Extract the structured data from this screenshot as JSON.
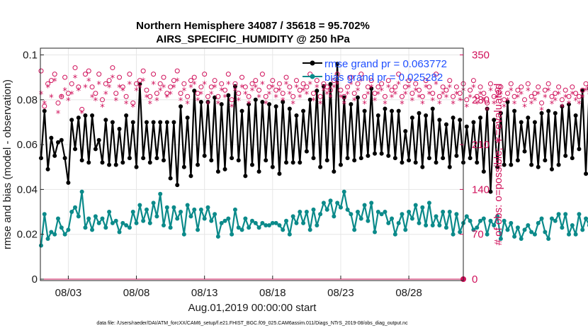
{
  "chart_data": {
    "type": "line",
    "title_line1": "Northern Hemisphere 34087 / 35618 = 95.702%",
    "title_line2": "AIRS_SPECIFIC_HUMIDITY @ 250 hPa",
    "xlabel": "Aug.01,2019 00:00:00 start",
    "ylabel": "rmse and bias (model - observation)",
    "ylabel_right": "# of obs: o=possible; ∗=evaluated",
    "ylim": [
      0,
      0.103
    ],
    "ylim_right": [
      0,
      360.5
    ],
    "yticks": [
      "0",
      "0.02",
      "0.04",
      "0.06",
      "0.08",
      "0.1"
    ],
    "yticks_right": [
      "0",
      "70",
      "140",
      "210",
      "280",
      "350"
    ],
    "xticks": [
      "08/03",
      "08/08",
      "08/13",
      "08/18",
      "08/23",
      "08/28"
    ],
    "footer": "data file: /Users/raeder/DAI/ATM_forcXX/CAM6_setup/f.e21.FHIST_BGC.f09_025.CAM6assim.011/Diags_NTrS_2019-08/obs_diag_output.nc",
    "x_start_day": 1.0,
    "x_step_days": 0.25,
    "series": [
      {
        "name": "rmse grand pr = 0.063772",
        "color": "#000000",
        "values": [
          0.054,
          0.075,
          0.049,
          0.063,
          0.055,
          0.061,
          0.062,
          0.054,
          0.043,
          0.071,
          0.058,
          0.072,
          0.053,
          0.073,
          0.052,
          0.073,
          0.058,
          0.062,
          0.052,
          0.071,
          0.051,
          0.07,
          0.051,
          0.067,
          0.052,
          0.073,
          0.054,
          0.07,
          0.05,
          0.087,
          0.054,
          0.07,
          0.052,
          0.07,
          0.054,
          0.07,
          0.053,
          0.07,
          0.045,
          0.07,
          0.042,
          0.077,
          0.05,
          0.072,
          0.046,
          0.084,
          0.051,
          0.079,
          0.055,
          0.079,
          0.053,
          0.081,
          0.048,
          0.078,
          0.049,
          0.082,
          0.054,
          0.086,
          0.053,
          0.075,
          0.046,
          0.078,
          0.051,
          0.08,
          0.048,
          0.079,
          0.053,
          0.078,
          0.05,
          0.077,
          0.047,
          0.079,
          0.052,
          0.076,
          0.052,
          0.073,
          0.052,
          0.075,
          0.057,
          0.08,
          0.054,
          0.084,
          0.05,
          0.086,
          0.053,
          0.087,
          0.048,
          0.096,
          0.051,
          0.081,
          0.054,
          0.078,
          0.053,
          0.081,
          0.054,
          0.075,
          0.055,
          0.085,
          0.056,
          0.073,
          0.056,
          0.076,
          0.055,
          0.075,
          0.054,
          0.075,
          0.052,
          0.066,
          0.053,
          0.072,
          0.052,
          0.074,
          0.05,
          0.073,
          0.054,
          0.076,
          0.052,
          0.071,
          0.054,
          0.069,
          0.05,
          0.072,
          0.055,
          0.071,
          0.052,
          0.068,
          0.054,
          0.07,
          0.052,
          0.072,
          0.048,
          0.076,
          0.039,
          0.071,
          0.05,
          0.074,
          0.051,
          0.079,
          0.051,
          0.075,
          0.053,
          0.07,
          0.057,
          0.072,
          0.051,
          0.07,
          0.05,
          0.074,
          0.053,
          0.075,
          0.049,
          0.074,
          0.051,
          0.077,
          0.055,
          0.078,
          0.054,
          0.073,
          0.058,
          0.084,
          0.047,
          0.085,
          0.057,
          0.069,
          0.054,
          0.072
        ],
        "marker": "filled-star"
      },
      {
        "name": "bias grand pr = 0.025282",
        "color": "#0b8a8a",
        "values": [
          0.015,
          0.029,
          0.018,
          0.021,
          0.02,
          0.027,
          0.023,
          0.02,
          0.022,
          0.03,
          0.032,
          0.028,
          0.039,
          0.023,
          0.027,
          0.022,
          0.028,
          0.025,
          0.027,
          0.023,
          0.03,
          0.025,
          0.026,
          0.021,
          0.025,
          0.024,
          0.023,
          0.03,
          0.025,
          0.033,
          0.026,
          0.031,
          0.025,
          0.034,
          0.028,
          0.038,
          0.024,
          0.032,
          0.023,
          0.032,
          0.027,
          0.03,
          0.02,
          0.033,
          0.028,
          0.031,
          0.022,
          0.031,
          0.027,
          0.032,
          0.026,
          0.029,
          0.019,
          0.025,
          0.026,
          0.027,
          0.02,
          0.031,
          0.023,
          0.022,
          0.027,
          0.023,
          0.026,
          0.025,
          0.023,
          0.025,
          0.024,
          0.024,
          0.025,
          0.025,
          0.024,
          0.022,
          0.026,
          0.02,
          0.028,
          0.025,
          0.03,
          0.025,
          0.03,
          0.022,
          0.031,
          0.024,
          0.029,
          0.034,
          0.031,
          0.035,
          0.028,
          0.034,
          0.032,
          0.039,
          0.031,
          0.029,
          0.022,
          0.03,
          0.027,
          0.033,
          0.026,
          0.034,
          0.021,
          0.03,
          0.029,
          0.03,
          0.025,
          0.027,
          0.02,
          0.025,
          0.029,
          0.022,
          0.03,
          0.027,
          0.033,
          0.025,
          0.032,
          0.024,
          0.034,
          0.024,
          0.028,
          0.024,
          0.03,
          0.023,
          0.03,
          0.02,
          0.029,
          0.021,
          0.025,
          0.028,
          0.026,
          0.022,
          0.023,
          0.026,
          0.027,
          0.02,
          0.026,
          0.024,
          0.028,
          0.018,
          0.026,
          0.022,
          0.025,
          0.019,
          0.023,
          0.018,
          0.022,
          0.024,
          0.021,
          0.02,
          0.025,
          0.027,
          0.021,
          0.018,
          0.027,
          0.026,
          0.029,
          0.023,
          0.029,
          0.02,
          0.024,
          0.02,
          0.029,
          0.022,
          0.027,
          0.024,
          0.026,
          0.031,
          0.024,
          0.03,
          0.02,
          0.025,
          0.026,
          0.028
        ],
        "marker": "filled-circle"
      },
      {
        "name": "possible",
        "axis": "right",
        "color": "#d0105a",
        "values": [
          325,
          270,
          305,
          310,
          320,
          275,
          285,
          315,
          290,
          305,
          330,
          300,
          265,
          320,
          325,
          300,
          290,
          320,
          280,
          305,
          310,
          330,
          290,
          315,
          300,
          285,
          320,
          275,
          305,
          310,
          325,
          295,
          285,
          320,
          290,
          305,
          315,
          290,
          300,
          310,
          325,
          290,
          305,
          285,
          310,
          315,
          290,
          300,
          320,
          285,
          300,
          310,
          285,
          305,
          295,
          320,
          280,
          305,
          290,
          315,
          300,
          285,
          305,
          310,
          295,
          320,
          285,
          300,
          310,
          295,
          305,
          290,
          315,
          300,
          285,
          310,
          295,
          305,
          300,
          320,
          290,
          310,
          285,
          305,
          300,
          295,
          310,
          320,
          295,
          285,
          300,
          315,
          290,
          305,
          320,
          285,
          300,
          310,
          290,
          300,
          305,
          285,
          310,
          295,
          300,
          320,
          285,
          300,
          310,
          290,
          305,
          295,
          285,
          310,
          300,
          290,
          320,
          285,
          300,
          295,
          310,
          285,
          300,
          290,
          305,
          280,
          295,
          310,
          285,
          300,
          290,
          275,
          305,
          285,
          295,
          300,
          280,
          290,
          305,
          285,
          295,
          300,
          280,
          305,
          285,
          290,
          300,
          275,
          295,
          305,
          285,
          290,
          300,
          280,
          295,
          285,
          300,
          290,
          285,
          295,
          305,
          300,
          290,
          310,
          300,
          285,
          295,
          305
        ],
        "marker": "open-circle"
      },
      {
        "name": "evaluated",
        "axis": "right",
        "color": "#d0105a",
        "values": [
          290,
          275,
          300,
          285,
          310,
          260,
          285,
          295,
          280,
          290,
          315,
          295,
          260,
          300,
          310,
          285,
          280,
          305,
          270,
          290,
          300,
          315,
          280,
          300,
          295,
          275,
          305,
          270,
          295,
          300,
          310,
          285,
          275,
          305,
          280,
          295,
          300,
          285,
          290,
          300,
          310,
          280,
          295,
          275,
          300,
          305,
          280,
          290,
          305,
          275,
          290,
          300,
          275,
          295,
          285,
          305,
          270,
          295,
          280,
          300,
          290,
          275,
          295,
          300,
          285,
          305,
          275,
          290,
          300,
          285,
          295,
          280,
          305,
          290,
          275,
          300,
          285,
          295,
          290,
          305,
          280,
          300,
          275,
          295,
          290,
          285,
          300,
          305,
          285,
          275,
          290,
          305,
          280,
          295,
          310,
          275,
          290,
          300,
          280,
          290,
          295,
          275,
          300,
          285,
          290,
          305,
          275,
          290,
          300,
          280,
          295,
          285,
          275,
          300,
          290,
          280,
          305,
          275,
          290,
          285,
          300,
          275,
          290,
          280,
          295,
          270,
          285,
          300,
          275,
          290,
          280,
          265,
          295,
          275,
          285,
          290,
          270,
          280,
          295,
          275,
          285,
          290,
          270,
          295,
          275,
          280,
          290,
          265,
          285,
          295,
          275,
          280,
          290,
          270,
          285,
          275,
          290,
          280,
          275,
          285,
          295,
          290,
          280,
          300,
          290,
          275,
          285,
          295
        ],
        "marker": "asterisk"
      }
    ]
  }
}
